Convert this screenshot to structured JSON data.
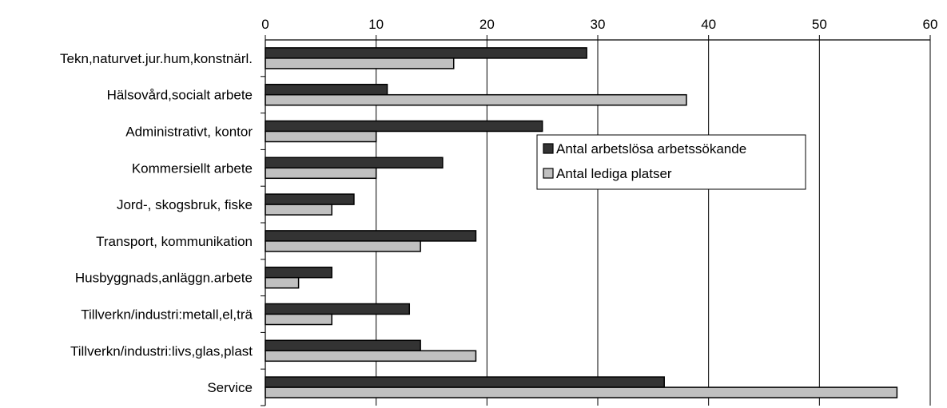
{
  "chart_data": {
    "type": "bar",
    "orientation": "horizontal",
    "title": "",
    "xlabel": "",
    "ylabel": "",
    "xlim": [
      0,
      60
    ],
    "xticks": [
      0,
      10,
      20,
      30,
      40,
      50,
      60
    ],
    "grid": "vertical",
    "legend_position": "center-right",
    "categories": [
      "Tekn,naturvet.jur.hum,konstnärl.",
      "Hälsovård,socialt arbete",
      "Administrativt, kontor",
      "Kommersiellt arbete",
      "Jord-, skogsbruk, fiske",
      "Transport, kommunikation",
      "Husbyggnads,anläggn.arbete",
      "Tillverkn/industri:metall,el,trä",
      "Tillverkn/industri:livs,glas,plast",
      "Service"
    ],
    "series": [
      {
        "name": "Antal arbetslösa arbetssökande",
        "color": "#333333",
        "values": [
          29,
          11,
          25,
          16,
          8,
          19,
          6,
          13,
          14,
          36
        ]
      },
      {
        "name": "Antal lediga platser",
        "color": "#c0c0c0",
        "values": [
          17,
          38,
          10,
          10,
          6,
          14,
          3,
          6,
          19,
          57
        ]
      }
    ]
  }
}
